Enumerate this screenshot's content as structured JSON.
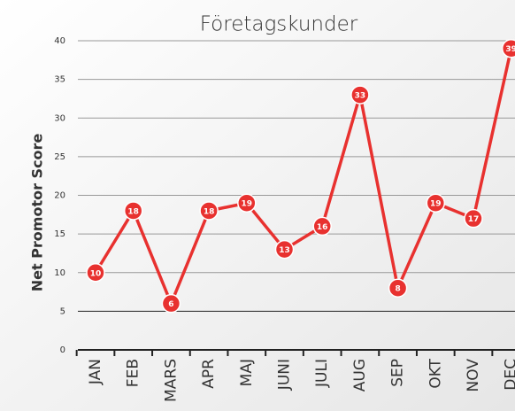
{
  "chart_data": {
    "type": "line",
    "title": "Företagskunder",
    "y_label": "Net Promotor Score",
    "categories": [
      "JAN",
      "FEB",
      "MARS",
      "APR",
      "MAJ",
      "JUNI",
      "JULI",
      "AUG",
      "SEP",
      "OKT",
      "NOV",
      "DEC"
    ],
    "series": [
      {
        "name": "Företagskunder",
        "color": "#e8312f",
        "values": [
          10,
          18,
          6,
          18,
          19,
          13,
          16,
          33,
          8,
          19,
          17,
          39
        ]
      }
    ],
    "ylim": [
      0,
      40
    ],
    "yticks": [
      0,
      5,
      10,
      15,
      20,
      25,
      30,
      35,
      40
    ],
    "grid": true
  }
}
